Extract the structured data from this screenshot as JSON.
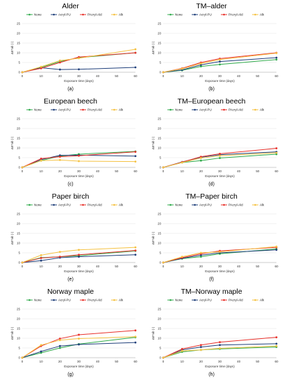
{
  "figure": {
    "series_colors": {
      "None": "#2eaa4a",
      "Acryl-PU": "#1f3f7a",
      "PAcryl-Ald": "#e8302a",
      "Alk": "#f5c242"
    }
  },
  "chart_data": [
    {
      "type": "line",
      "title": "Alder",
      "letter": "(a)",
      "xlabel": "Exposure time (days)",
      "ylabel": "ΔE*ab (-)",
      "x": [
        0,
        10,
        20,
        30,
        60
      ],
      "xticks": [
        0,
        10,
        20,
        30,
        40,
        50,
        60
      ],
      "xlim": [
        0,
        60
      ],
      "ylim": [
        0,
        25
      ],
      "yticks": [
        0,
        5,
        10,
        15,
        20,
        25
      ],
      "grid": "horizontal",
      "legend_position": "top",
      "series": [
        {
          "name": "None",
          "values": [
            0,
            2.5,
            5.5,
            7.5,
            10
          ]
        },
        {
          "name": "Acryl-PU",
          "values": [
            0,
            2.3,
            1.4,
            1.5,
            2.5
          ]
        },
        {
          "name": "PAcryl-Ald",
          "values": [
            0,
            2.0,
            5.0,
            7.8,
            10
          ]
        },
        {
          "name": "Alk",
          "values": [
            0,
            2.8,
            6.0,
            7.2,
            11.8
          ]
        }
      ]
    },
    {
      "type": "line",
      "title": "TM–alder",
      "letter": "(b)",
      "xlabel": "Exposure time (days)",
      "ylabel": "ΔE*ab (-)",
      "x": [
        0,
        10,
        20,
        30,
        60
      ],
      "xticks": [
        0,
        10,
        20,
        30,
        40,
        50,
        60
      ],
      "xlim": [
        0,
        60
      ],
      "ylim": [
        0,
        25
      ],
      "yticks": [
        0,
        5,
        10,
        15,
        20,
        25
      ],
      "grid": "horizontal",
      "legend_position": "top",
      "series": [
        {
          "name": "None",
          "values": [
            0,
            1.0,
            3.0,
            4.0,
            6.5
          ]
        },
        {
          "name": "Acryl-PU",
          "values": [
            0,
            1.2,
            3.8,
            5.5,
            7.5
          ]
        },
        {
          "name": "PAcryl-Ald",
          "values": [
            0,
            2.0,
            5.0,
            7.0,
            10
          ]
        },
        {
          "name": "Alk",
          "values": [
            0,
            1.8,
            4.5,
            6.5,
            9.8
          ]
        }
      ]
    },
    {
      "type": "line",
      "title": "European beech",
      "letter": "(c)",
      "xlabel": "Exposure time (days)",
      "ylabel": "ΔE*ab (-)",
      "x": [
        0,
        10,
        20,
        30,
        60
      ],
      "xticks": [
        0,
        10,
        20,
        30,
        40,
        50,
        60
      ],
      "xlim": [
        0,
        60
      ],
      "ylim": [
        0,
        25
      ],
      "yticks": [
        0,
        5,
        10,
        15,
        20,
        25
      ],
      "grid": "horizontal",
      "legend_position": "top",
      "series": [
        {
          "name": "None",
          "values": [
            0,
            3.5,
            5.8,
            6.8,
            8.2
          ]
        },
        {
          "name": "Acryl-PU",
          "values": [
            0,
            4.0,
            6.2,
            6.3,
            5.8
          ]
        },
        {
          "name": "PAcryl-Ald",
          "values": [
            0,
            4.5,
            5.5,
            6.0,
            8.0
          ]
        },
        {
          "name": "Alk",
          "values": [
            0,
            3.5,
            3.8,
            3.2,
            3.0
          ]
        }
      ]
    },
    {
      "type": "line",
      "title": "TM–European beech",
      "letter": "(d)",
      "xlabel": "Exposure time (days)",
      "ylabel": "ΔE*ab (-)",
      "x": [
        0,
        10,
        20,
        30,
        60
      ],
      "xticks": [
        0,
        10,
        20,
        30,
        40,
        50,
        60
      ],
      "xlim": [
        0,
        60
      ],
      "ylim": [
        0,
        25
      ],
      "yticks": [
        0,
        5,
        10,
        15,
        20,
        25
      ],
      "grid": "horizontal",
      "legend_position": "top",
      "series": [
        {
          "name": "None",
          "values": [
            0,
            2.5,
            3.5,
            4.8,
            6.8
          ]
        },
        {
          "name": "Acryl-PU",
          "values": [
            0,
            2.8,
            5.2,
            6.5,
            8.0
          ]
        },
        {
          "name": "PAcryl-Ald",
          "values": [
            0,
            2.7,
            5.5,
            7.0,
            9.8
          ]
        },
        {
          "name": "Alk",
          "values": [
            0,
            2.5,
            4.8,
            6.0,
            7.5
          ]
        }
      ]
    },
    {
      "type": "line",
      "title": "Paper birch",
      "letter": "(e)",
      "xlabel": "Exposure time (days)",
      "ylabel": "ΔE*ab (-)",
      "x": [
        0,
        10,
        20,
        30,
        60
      ],
      "xticks": [
        0,
        10,
        20,
        30,
        40,
        50,
        60
      ],
      "xlim": [
        0,
        60
      ],
      "ylim": [
        0,
        25
      ],
      "yticks": [
        0,
        5,
        10,
        15,
        20,
        25
      ],
      "grid": "horizontal",
      "legend_position": "top",
      "series": [
        {
          "name": "None",
          "values": [
            0,
            2.5,
            3.0,
            3.5,
            6.0
          ]
        },
        {
          "name": "Acryl-PU",
          "values": [
            0,
            1.0,
            2.5,
            3.0,
            4.0
          ]
        },
        {
          "name": "PAcryl-Ald",
          "values": [
            0,
            2.3,
            3.0,
            4.0,
            6.2
          ]
        },
        {
          "name": "Alk",
          "values": [
            0,
            3.8,
            5.5,
            6.5,
            7.8
          ]
        }
      ]
    },
    {
      "type": "line",
      "title": "TM–Paper birch",
      "letter": "(f)",
      "xlabel": "Exposure time (days)",
      "ylabel": "ΔE*ab (-)",
      "x": [
        0,
        10,
        20,
        30,
        60
      ],
      "xticks": [
        0,
        10,
        20,
        30,
        40,
        50,
        60
      ],
      "xlim": [
        0,
        60
      ],
      "ylim": [
        0,
        25
      ],
      "yticks": [
        0,
        5,
        10,
        15,
        20,
        25
      ],
      "grid": "horizontal",
      "legend_position": "top",
      "series": [
        {
          "name": "None",
          "values": [
            0,
            2.0,
            3.0,
            4.5,
            7.0
          ]
        },
        {
          "name": "Acryl-PU",
          "values": [
            0,
            2.2,
            3.8,
            5.0,
            6.5
          ]
        },
        {
          "name": "PAcryl-Ald",
          "values": [
            0,
            2.5,
            4.5,
            6.0,
            7.8
          ]
        },
        {
          "name": "Alk",
          "values": [
            0,
            3.0,
            5.0,
            5.5,
            8.2
          ]
        }
      ]
    },
    {
      "type": "line",
      "title": "Norway maple",
      "letter": "(g)",
      "xlabel": "Exposure time (days)",
      "ylabel": "ΔE*ab (-)",
      "x": [
        0,
        10,
        20,
        30,
        60
      ],
      "xticks": [
        0,
        10,
        20,
        30,
        40,
        50,
        60
      ],
      "xlim": [
        0,
        60
      ],
      "ylim": [
        0,
        25
      ],
      "yticks": [
        0,
        5,
        10,
        15,
        20,
        25
      ],
      "grid": "horizontal",
      "legend_position": "top",
      "series": [
        {
          "name": "None",
          "values": [
            0,
            2.5,
            5.0,
            7.0,
            10.5
          ]
        },
        {
          "name": "Acryl-PU",
          "values": [
            0,
            3.2,
            6.0,
            6.8,
            7.8
          ]
        },
        {
          "name": "PAcryl-Ald",
          "values": [
            0,
            6.0,
            9.8,
            11.8,
            14.0
          ]
        },
        {
          "name": "Alk",
          "values": [
            0,
            6.5,
            9.0,
            9.8,
            10.8
          ]
        }
      ]
    },
    {
      "type": "line",
      "title": "TM–Norway maple",
      "letter": "(h)",
      "xlabel": "Exposure time (days)",
      "ylabel": "ΔE*ab (-)",
      "x": [
        0,
        10,
        20,
        30,
        60
      ],
      "xticks": [
        0,
        10,
        20,
        30,
        40,
        50,
        60
      ],
      "xlim": [
        0,
        60
      ],
      "ylim": [
        0,
        25
      ],
      "yticks": [
        0,
        5,
        10,
        15,
        20,
        25
      ],
      "grid": "horizontal",
      "legend_position": "top",
      "series": [
        {
          "name": "None",
          "values": [
            0,
            3.0,
            4.0,
            4.5,
            5.5
          ]
        },
        {
          "name": "Acryl-PU",
          "values": [
            0,
            4.0,
            5.5,
            6.5,
            7.2
          ]
        },
        {
          "name": "PAcryl-Ald",
          "values": [
            0,
            4.5,
            6.5,
            8.0,
            10.5
          ]
        },
        {
          "name": "Alk",
          "values": [
            0,
            3.5,
            4.0,
            4.8,
            6.0
          ]
        }
      ]
    }
  ]
}
